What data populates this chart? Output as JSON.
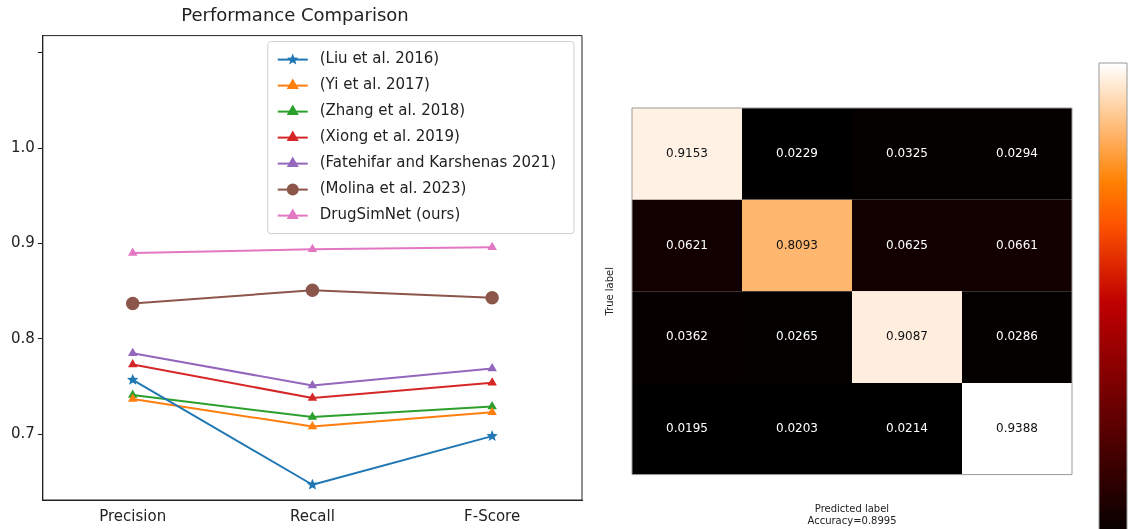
{
  "chart_data": [
    {
      "type": "line",
      "title": "Performance Comparison",
      "categories": [
        "Precision",
        "Recall",
        "F-Score"
      ],
      "ylim": [
        0.631,
        1.118
      ],
      "yticks": [
        0.7,
        0.8,
        0.9,
        {
          "value": 1.0,
          "label": "1.0"
        },
        {
          "value": 1.1,
          "label": null
        }
      ],
      "grid": false,
      "legend": "top right",
      "line_style": "solid",
      "series": [
        {
          "name": "(Liu et al. 2016)",
          "color": "#1f77b4",
          "marker": "star",
          "values": [
            0.757,
            0.647,
            0.698
          ]
        },
        {
          "name": "(Yi et al. 2017)",
          "color": "#ff7f0e",
          "marker": "triangle",
          "values": [
            0.737,
            0.708,
            0.723
          ]
        },
        {
          "name": "(Zhang et al. 2018)",
          "color": "#2ca02c",
          "marker": "triangle",
          "values": [
            0.741,
            0.718,
            0.729
          ]
        },
        {
          "name": "(Xiong et al. 2019)",
          "color": "#d62728",
          "marker": "triangle",
          "values": [
            0.773,
            0.738,
            0.754
          ]
        },
        {
          "name": "(Fatehifar and Karshenas 2021)",
          "color": "#9467bd",
          "marker": "triangle",
          "values": [
            0.785,
            0.751,
            0.769
          ]
        },
        {
          "name": "(Molina et al. 2023)",
          "color": "#8c564b",
          "marker": "circle",
          "values": [
            0.837,
            0.851,
            0.843
          ]
        },
        {
          "name": "DrugSimNet (ours)",
          "color": "#e377c2",
          "marker": "triangle",
          "values": [
            0.89,
            0.894,
            0.896
          ]
        }
      ]
    },
    {
      "type": "heatmap",
      "xlabel": "Predicted label",
      "ylabel": "True label",
      "annotations": [
        "Accuracy=0.8995"
      ],
      "data_labels": true,
      "categories": [
        null,
        null,
        null,
        null
      ],
      "y_categories": [
        null,
        null,
        null,
        null
      ],
      "cells": [
        [
          0.9153,
          0.0229,
          0.0325,
          0.0294
        ],
        [
          0.0621,
          0.8093,
          0.0625,
          0.0661
        ],
        [
          0.0362,
          0.0265,
          0.9087,
          0.0286
        ],
        [
          0.0195,
          0.0203,
          0.0214,
          0.9388
        ]
      ]
    }
  ]
}
